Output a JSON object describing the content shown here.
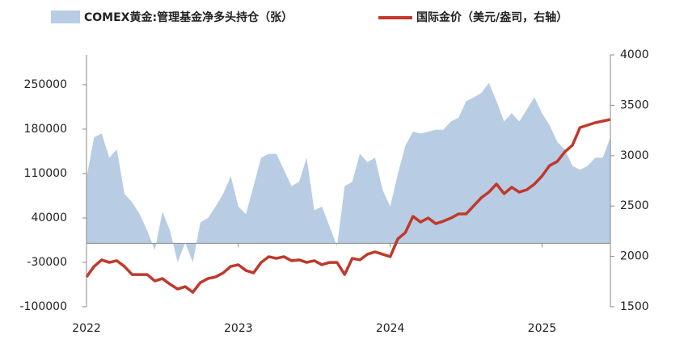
{
  "chart_data": {
    "type": "area-line",
    "x": [
      2022,
      2022.05,
      2022.1,
      2022.15,
      2022.2,
      2022.25,
      2022.3,
      2022.35,
      2022.4,
      2022.45,
      2022.5,
      2022.55,
      2022.6,
      2022.65,
      2022.7,
      2022.75,
      2022.8,
      2022.85,
      2022.9,
      2022.95,
      2023,
      2023.05,
      2023.1,
      2023.15,
      2023.2,
      2023.25,
      2023.3,
      2023.35,
      2023.4,
      2023.45,
      2023.5,
      2023.55,
      2023.6,
      2023.65,
      2023.7,
      2023.75,
      2023.8,
      2023.85,
      2023.9,
      2023.95,
      2024,
      2024.05,
      2024.1,
      2024.15,
      2024.2,
      2024.25,
      2024.3,
      2024.35,
      2024.4,
      2024.45,
      2024.5,
      2024.55,
      2024.6,
      2024.65,
      2024.7,
      2024.75,
      2024.8,
      2024.85,
      2024.9,
      2024.95,
      2025,
      2025.05,
      2025.1,
      2025.15,
      2025.2,
      2025.25,
      2025.3,
      2025.35,
      2025.4,
      2025.45
    ],
    "series": [
      {
        "name": "COMEX黄金:管理基金净多头持仓（张）",
        "kind": "area",
        "color": "#b8cce4",
        "values": [
          103000,
          167000,
          173000,
          135000,
          148000,
          78000,
          65000,
          46000,
          20000,
          -11000,
          50000,
          20000,
          -30000,
          1000,
          -30000,
          33000,
          40000,
          58000,
          78000,
          106000,
          58000,
          46000,
          90000,
          135000,
          141000,
          141000,
          116000,
          90000,
          97000,
          135000,
          52000,
          58000,
          27000,
          -5000,
          90000,
          97000,
          141000,
          128000,
          135000,
          84000,
          58000,
          109000,
          154000,
          176000,
          173000,
          176000,
          179000,
          179000,
          192000,
          198000,
          224000,
          230000,
          237000,
          253000,
          224000,
          192000,
          205000,
          192000,
          211000,
          230000,
          205000,
          186000,
          160000,
          148000,
          122000,
          116000,
          122000,
          135000,
          135000,
          167000
        ]
      },
      {
        "name": "国际金价（美元/盎司，右轴）",
        "kind": "line",
        "axis": "y2",
        "color": "#c0392b",
        "values": [
          1796,
          1900,
          1965,
          1940,
          1957,
          1900,
          1820,
          1820,
          1820,
          1756,
          1780,
          1724,
          1676,
          1700,
          1644,
          1740,
          1780,
          1796,
          1836,
          1900,
          1917,
          1860,
          1836,
          1940,
          1997,
          1980,
          1997,
          1957,
          1965,
          1940,
          1957,
          1917,
          1940,
          1940,
          1820,
          1980,
          1965,
          2021,
          2045,
          2021,
          1997,
          2173,
          2237,
          2397,
          2341,
          2381,
          2325,
          2349,
          2381,
          2421,
          2421,
          2502,
          2582,
          2638,
          2718,
          2622,
          2686,
          2638,
          2662,
          2718,
          2798,
          2902,
          2942,
          3038,
          3103,
          3279,
          3303,
          3327,
          3343,
          3359
        ]
      }
    ],
    "xlim": [
      2022,
      2025.45
    ],
    "xticks": [
      2022,
      2023,
      2024,
      2025
    ],
    "ylim": [
      -100000,
      297000
    ],
    "yticks": [
      -100000,
      -30000,
      40000,
      110000,
      180000,
      250000
    ],
    "y2lim": [
      1500,
      4000
    ],
    "y2ticks": [
      1500,
      2000,
      2500,
      3000,
      3500,
      4000
    ]
  }
}
